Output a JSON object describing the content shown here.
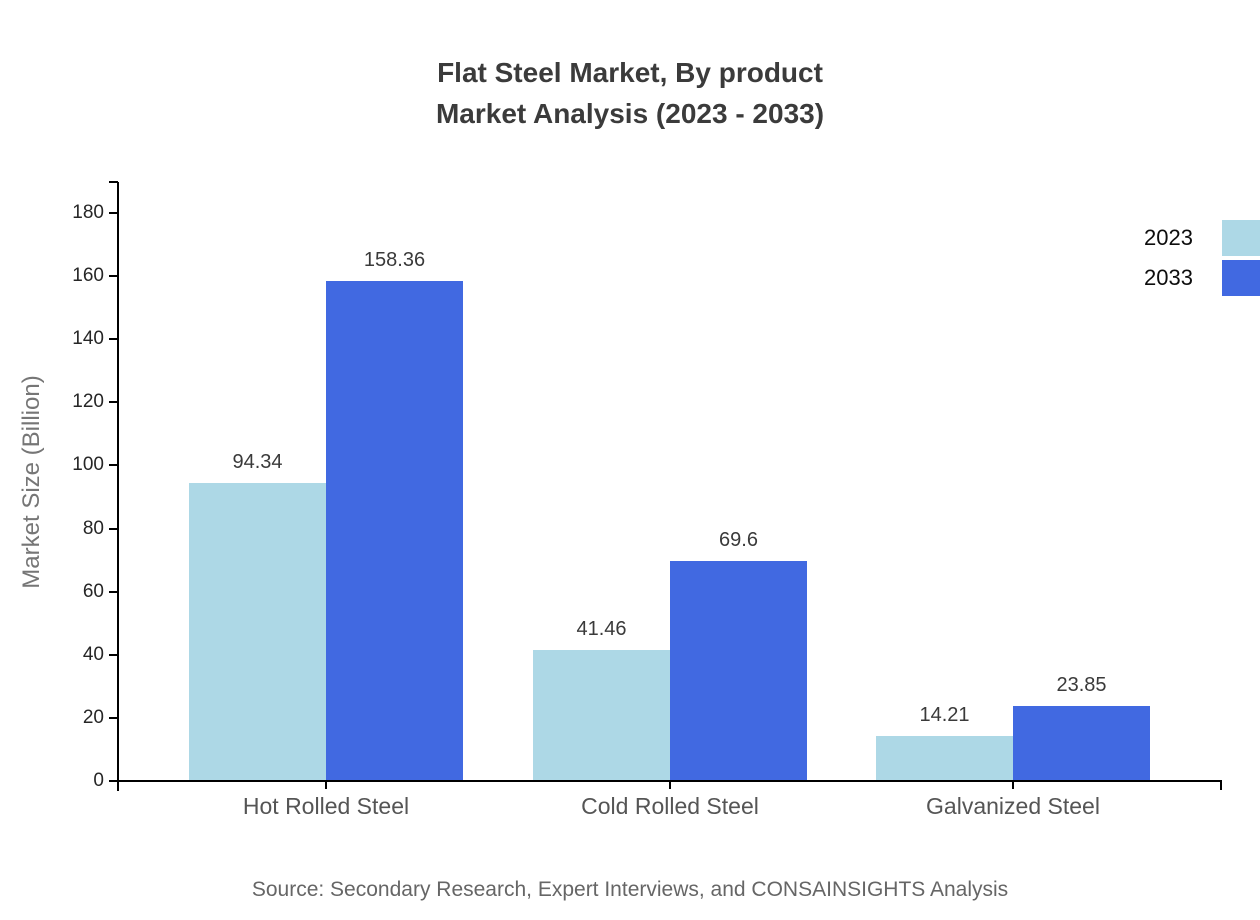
{
  "title": {
    "line1": "Flat Steel Market, By product",
    "line2": "Market Analysis (2023 - 2033)"
  },
  "source": "Source: Secondary Research, Expert Interviews, and CONSAINSIGHTS Analysis",
  "legend": {
    "items": [
      {
        "label": "2023",
        "color": "#ADD8E6"
      },
      {
        "label": "2033",
        "color": "#4169E1"
      }
    ]
  },
  "chart_data": {
    "type": "bar",
    "title": "Flat Steel Market, By product Market Analysis (2023 - 2033)",
    "categories": [
      "Hot Rolled Steel",
      "Cold Rolled Steel",
      "Galvanized Steel"
    ],
    "series": [
      {
        "name": "2023",
        "color": "#ADD8E6",
        "values": [
          94.34,
          41.46,
          14.21
        ]
      },
      {
        "name": "2033",
        "color": "#4169E1",
        "values": [
          158.36,
          69.6,
          23.85
        ]
      }
    ],
    "xlabel": "",
    "ylabel": "Market Size (Billion)",
    "ylim": [
      0,
      180
    ],
    "ytick_step": 20,
    "grid": false,
    "legend_position": "top-right",
    "value_labels": true
  }
}
